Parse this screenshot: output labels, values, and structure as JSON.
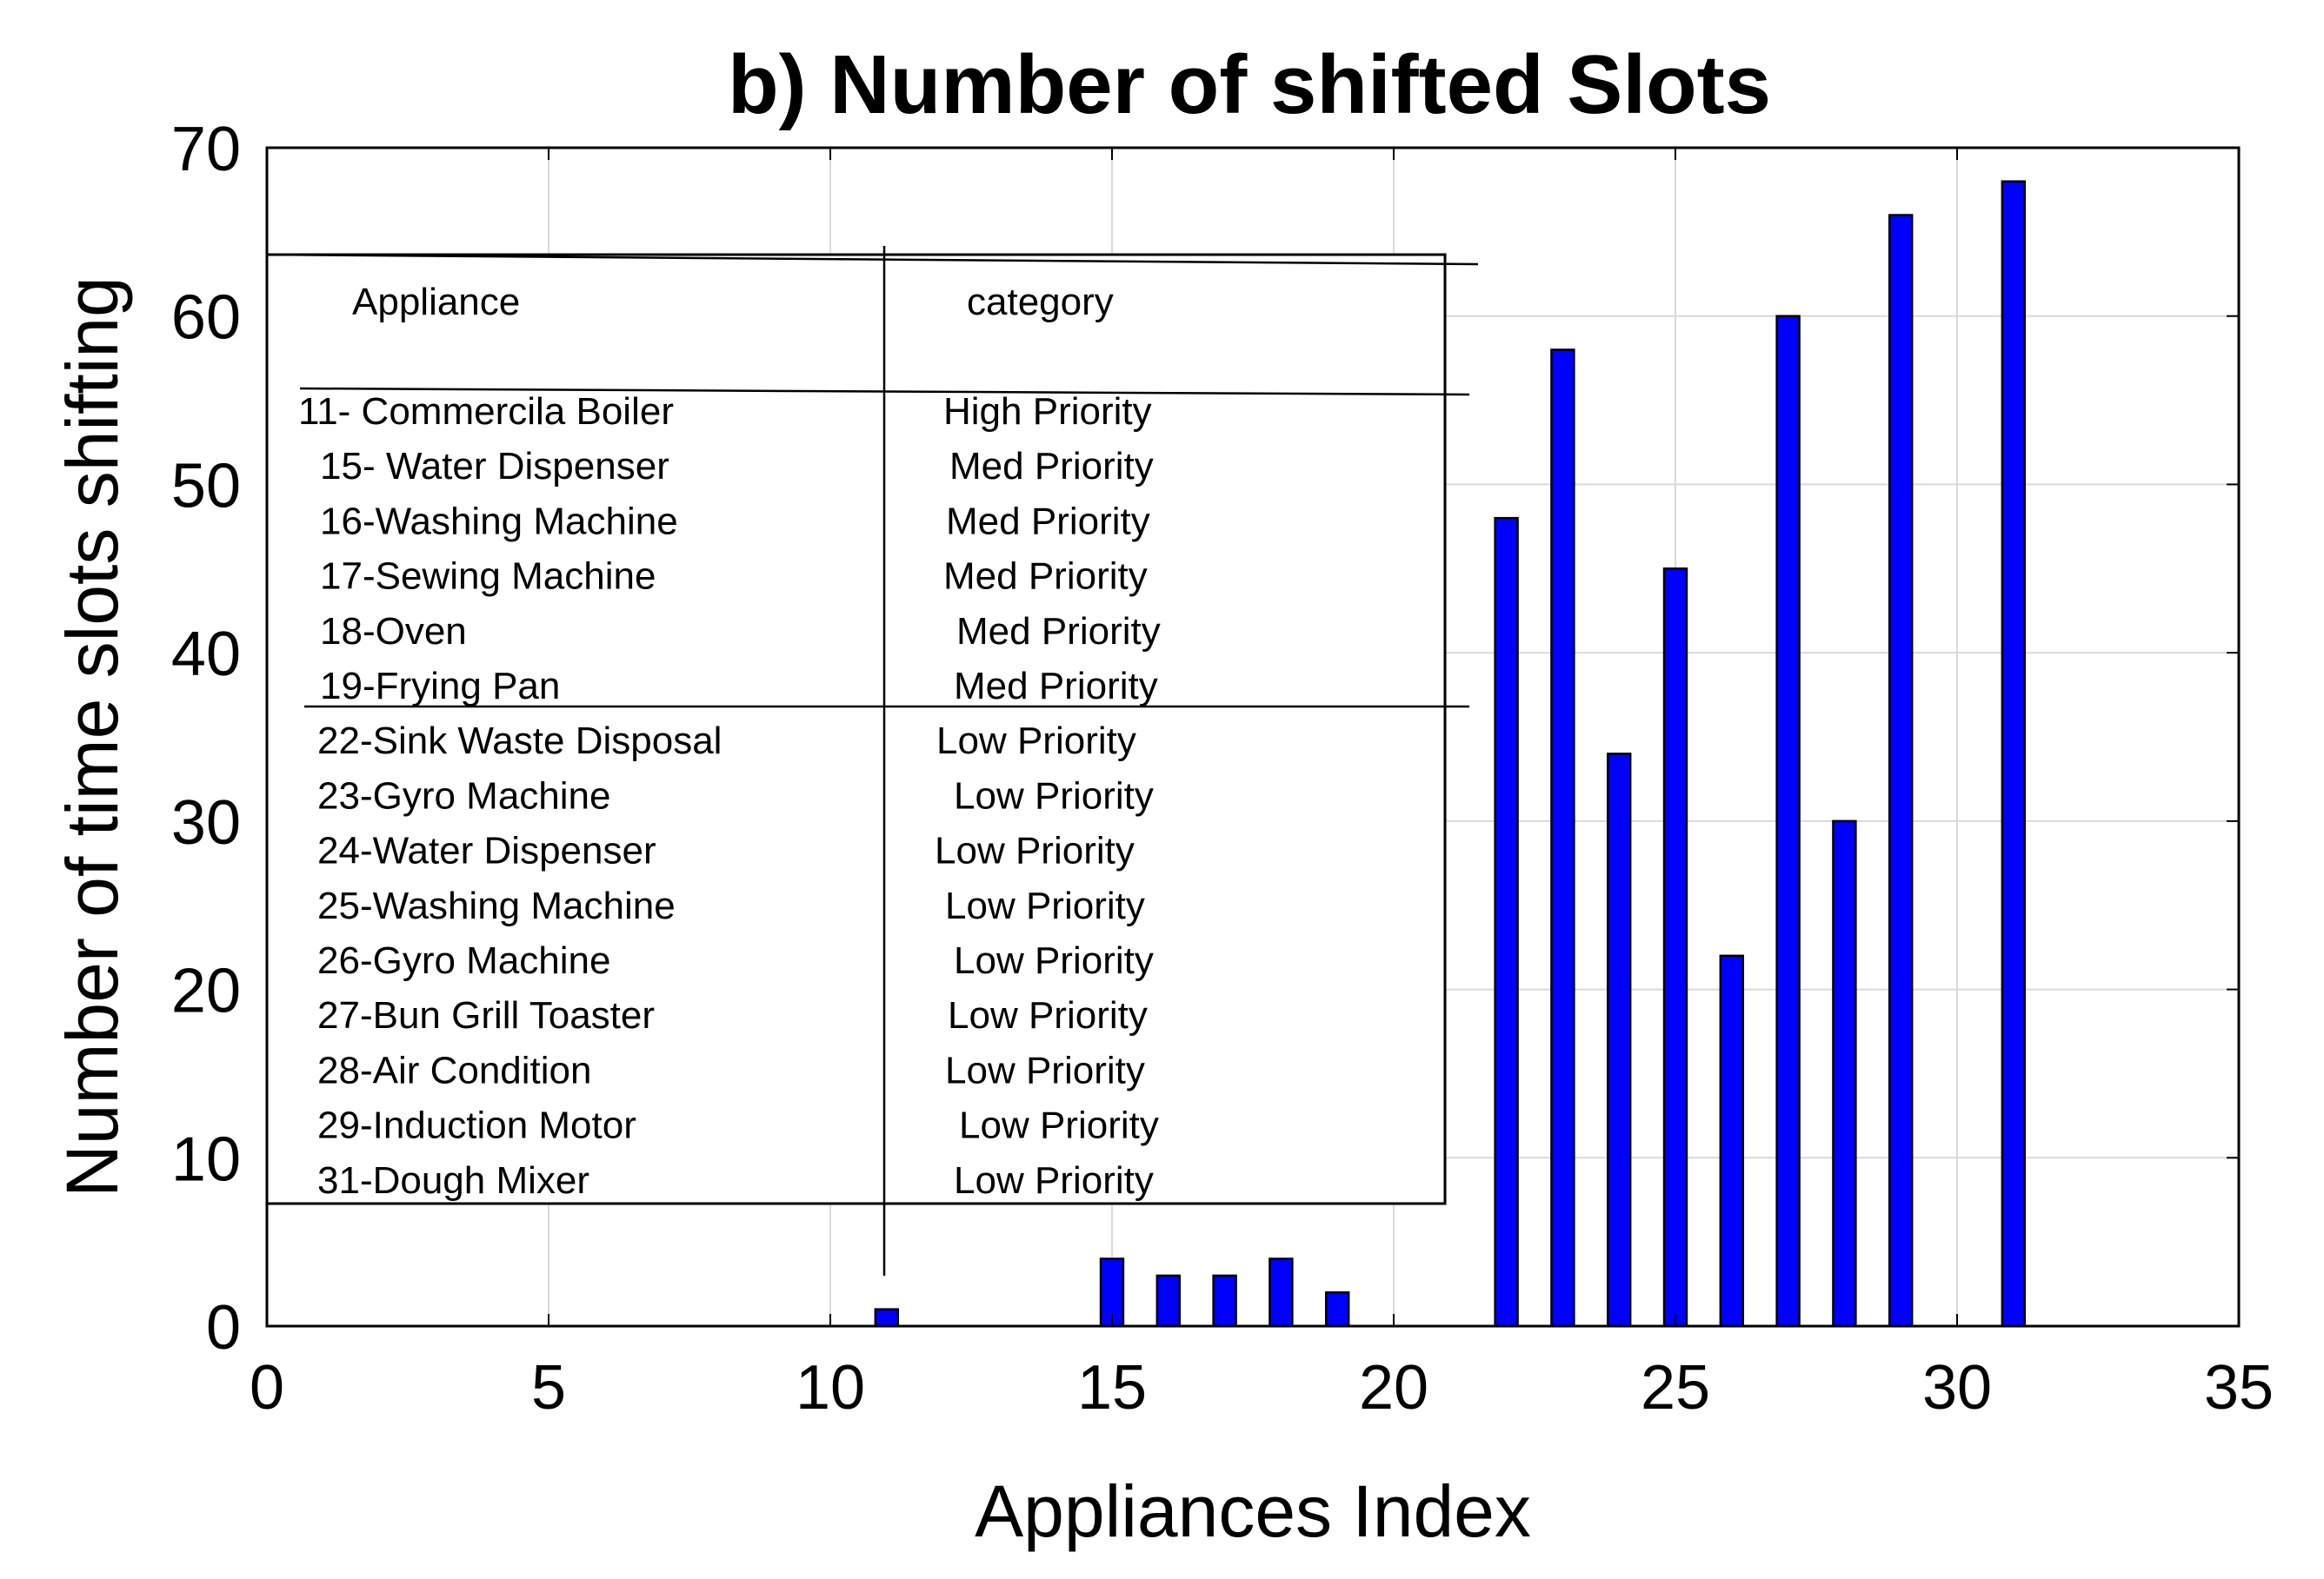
{
  "chart_data": {
    "type": "bar",
    "title": "b) Number of shifted Slots",
    "xlabel": "Appliances Index",
    "ylabel": "Number of time slots shifting",
    "xlim": [
      0,
      35
    ],
    "ylim": [
      0,
      70
    ],
    "xticks": [
      0,
      5,
      10,
      15,
      20,
      25,
      30,
      35
    ],
    "yticks": [
      0,
      10,
      20,
      30,
      40,
      50,
      60,
      70
    ],
    "grid": true,
    "color": "#0000ff",
    "x": [
      11,
      15,
      16,
      17,
      18,
      19,
      22,
      23,
      24,
      25,
      26,
      27,
      28,
      29,
      31
    ],
    "values": [
      1,
      4,
      3,
      3,
      4,
      2,
      48,
      58,
      34,
      45,
      22,
      60,
      30,
      66,
      68
    ],
    "table": {
      "headers": [
        "Appliance",
        "category"
      ],
      "rows": [
        [
          "11-  Commercila Boiler",
          "High Priority"
        ],
        [
          "15- Water Dispenser",
          "Med Priority"
        ],
        [
          "16-Washing Machine",
          "Med Priority"
        ],
        [
          "17-Sewing Machine",
          "Med Priority"
        ],
        [
          "18-Oven",
          "Med Priority"
        ],
        [
          "19-Frying Pan",
          "Med Priority"
        ],
        [
          "22-Sink Waste Disposal",
          "Low Priority"
        ],
        [
          "23-Gyro Machine",
          "Low Priority"
        ],
        [
          "24-Water Dispenser",
          "Low Priority"
        ],
        [
          "25-Washing Machine",
          "Low Priority"
        ],
        [
          "26-Gyro Machine",
          "Low Priority"
        ],
        [
          "27-Bun Grill Toaster",
          "Low Priority"
        ],
        [
          "28-Air Condition",
          "Low Priority"
        ],
        [
          "29-Induction Motor",
          "Low Priority"
        ],
        [
          "31-Dough Mixer",
          "Low Priority"
        ]
      ]
    }
  }
}
